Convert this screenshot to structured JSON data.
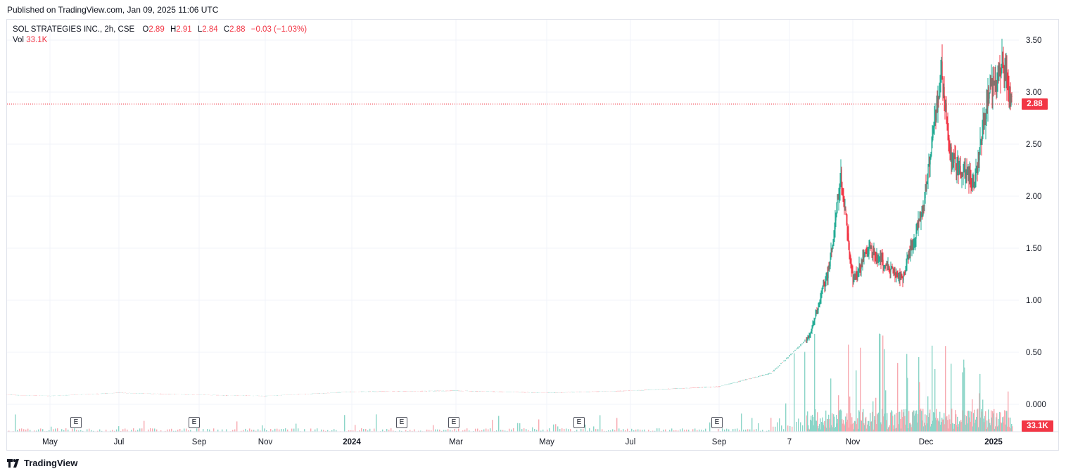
{
  "header": {
    "published": "Published on TradingView.com, Jan 09, 2025 11:06 UTC"
  },
  "legend": {
    "symbol": "SOL STRATEGIES INC., 2h, CSE",
    "o_label": "O",
    "o_value": "2.89",
    "h_label": "H",
    "h_value": "2.91",
    "l_label": "L",
    "l_value": "2.84",
    "c_label": "C",
    "c_value": "2.88",
    "change": "−0.03 (−1.03%)",
    "vol_label": "Vol",
    "vol_value": "33.1K"
  },
  "badges": {
    "last_price": "2.88",
    "last_volume": "33.1K"
  },
  "earnings_marker": "E",
  "footer": {
    "brand": "TradingView"
  },
  "colors": {
    "up": "#22ab94",
    "down": "#f23645",
    "grid": "#f0f3fa",
    "axis_text": "#131722"
  },
  "chart_data": {
    "type": "candlestick",
    "y_axis": {
      "ticks": [
        "3.50",
        "3.00",
        "2.50",
        "2.00",
        "1.50",
        "1.00",
        "0.50",
        "0.000"
      ],
      "ylim": [
        0,
        3.5
      ]
    },
    "x_axis": {
      "ticks": [
        "May",
        "Jul",
        "Sep",
        "Nov",
        "2024",
        "Mar",
        "May",
        "Jul",
        "Sep",
        "7",
        "Nov",
        "Dec",
        "2025"
      ]
    },
    "last_price": 2.88,
    "earnings_markers": 6,
    "price_path": [
      [
        "Apr 2023",
        0.09
      ],
      [
        "May 2023",
        0.08
      ],
      [
        "Jul 2023",
        0.11
      ],
      [
        "Sep 2023",
        0.09
      ],
      [
        "Nov 2023",
        0.08
      ],
      [
        "2024",
        0.12
      ],
      [
        "Mar 2024",
        0.13
      ],
      [
        "May 2024",
        0.11
      ],
      [
        "Jul 2024",
        0.13
      ],
      [
        "Sep 2024",
        0.17
      ],
      [
        "Oct 7 2024",
        0.3
      ],
      [
        "mid Oct 2024",
        0.65
      ],
      [
        "late Oct 2024",
        1.3
      ],
      [
        "Oct 31 2024",
        2.2
      ],
      [
        "Nov 2024",
        1.2
      ],
      [
        "mid Nov 2024",
        1.5
      ],
      [
        "late Nov 2024",
        1.2
      ],
      [
        "Dec 2024",
        1.9
      ],
      [
        "Dec 10 2024",
        3.2
      ],
      [
        "mid Dec 2024",
        2.4
      ],
      [
        "late Dec 2024",
        2.1
      ],
      [
        "2025",
        3.0
      ],
      [
        "Jan 6 2025",
        3.27
      ],
      [
        "Jan 9 2025",
        2.88
      ]
    ],
    "volume": {
      "last": "33.1K"
    }
  }
}
